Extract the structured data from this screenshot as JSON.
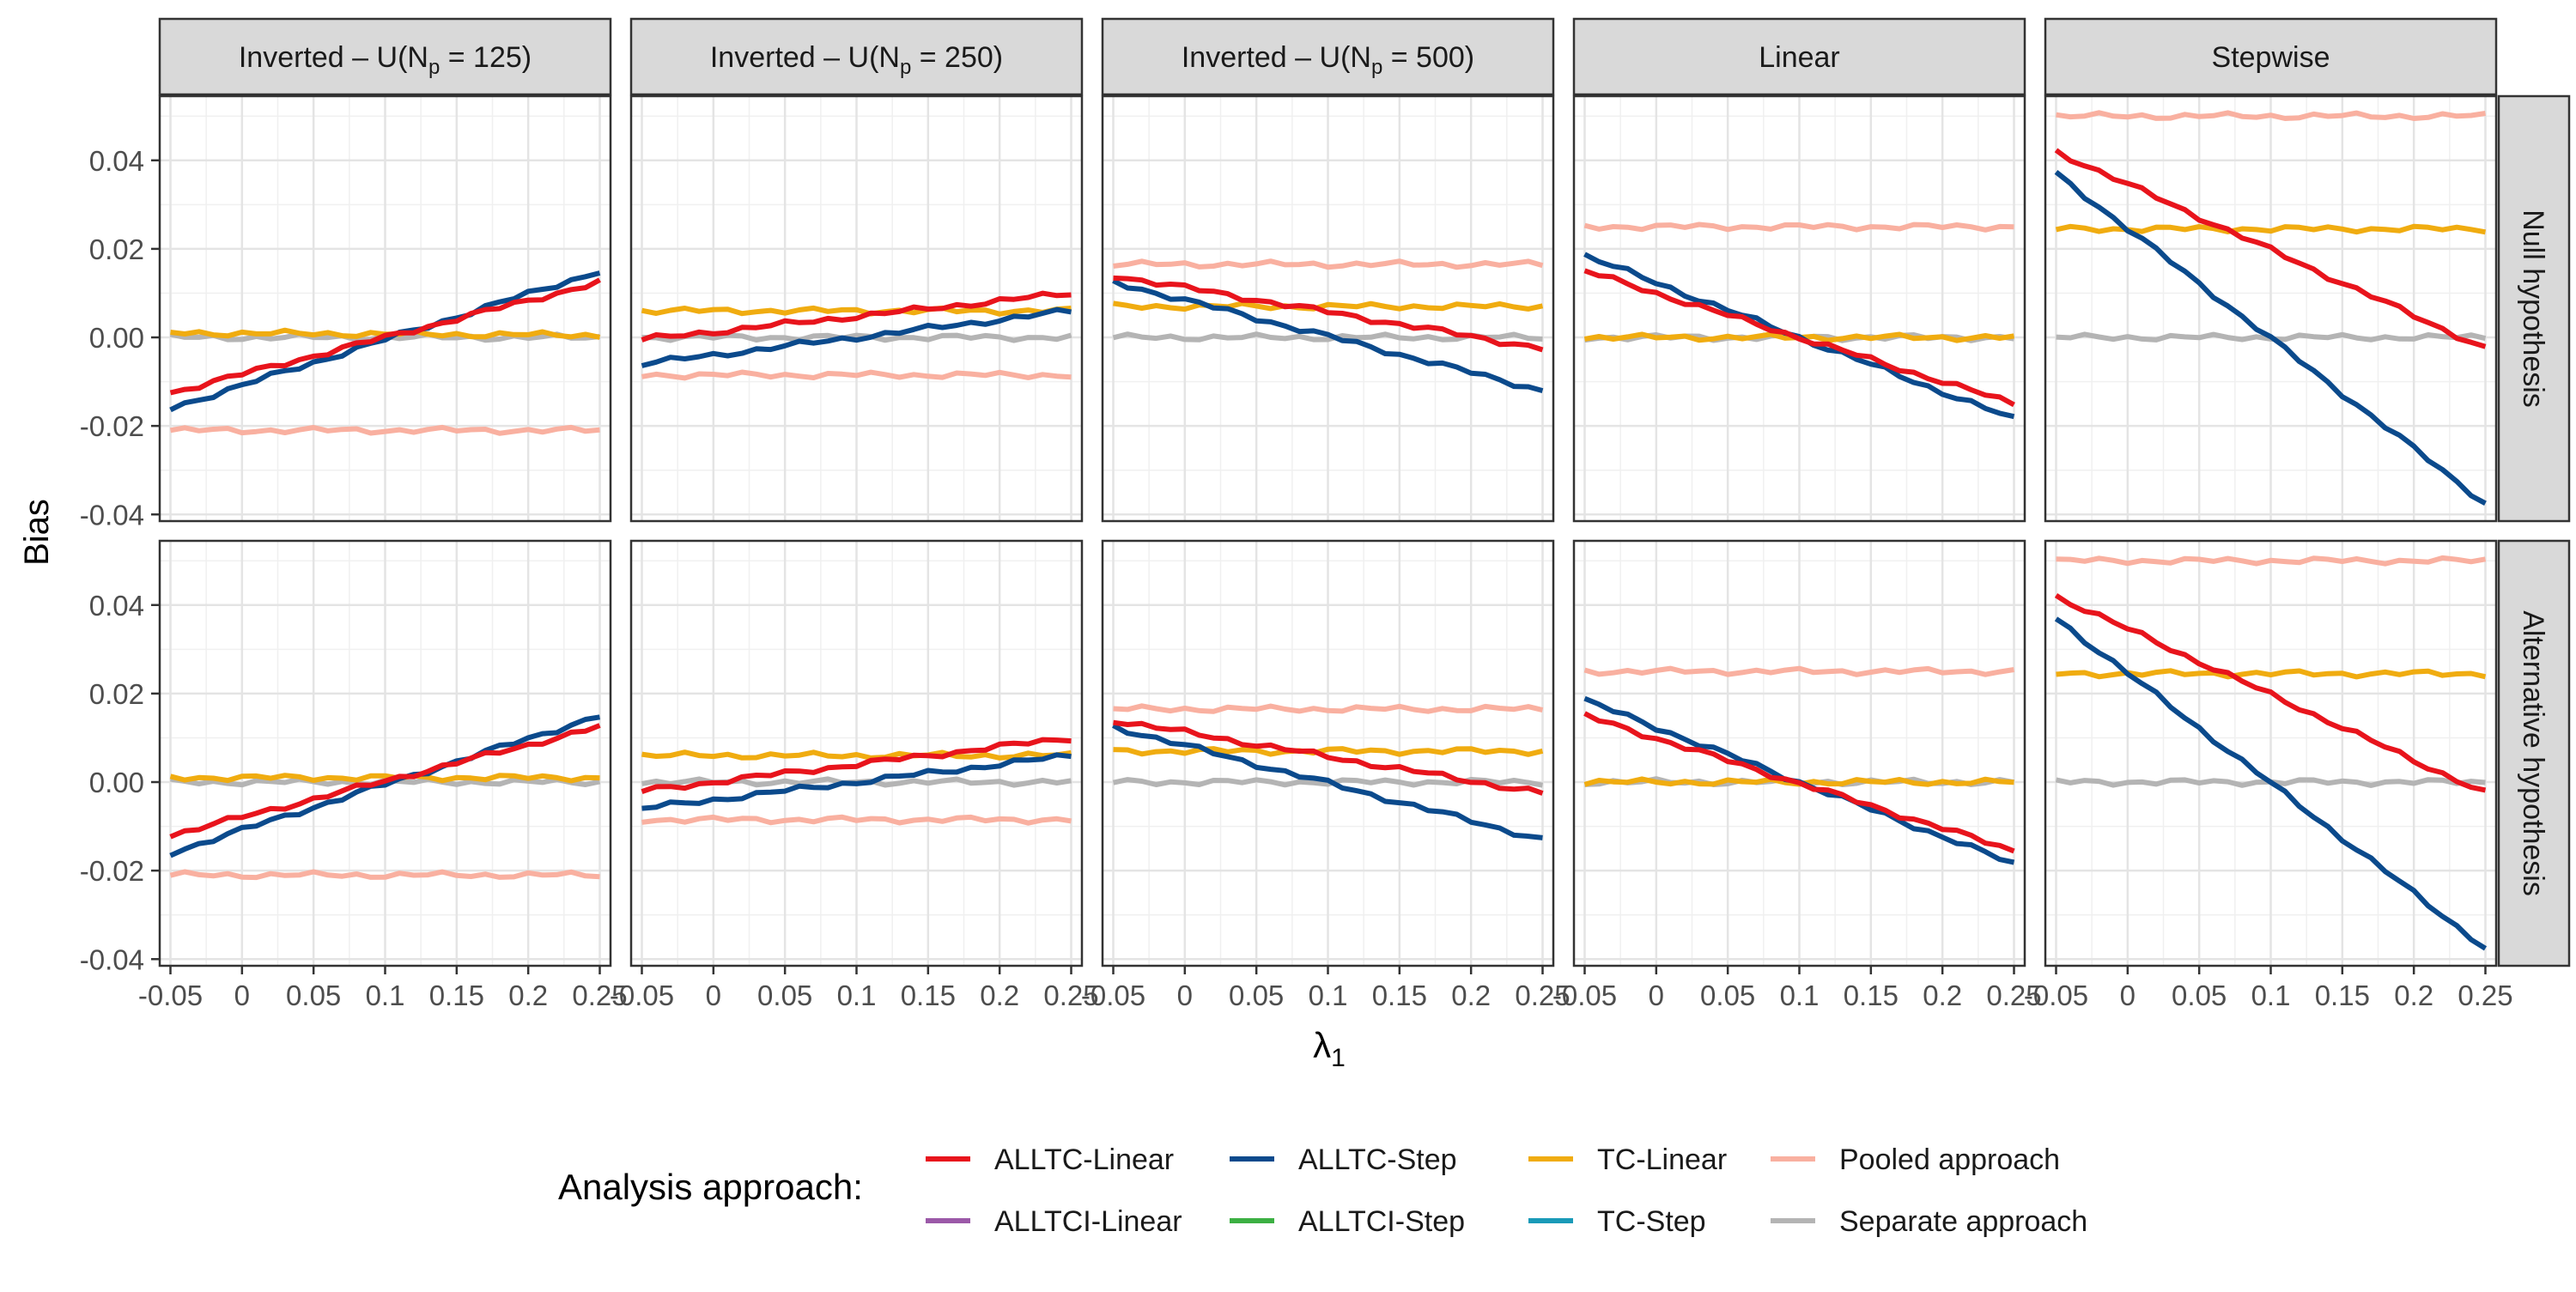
{
  "chart_data": {
    "type": "line",
    "ylabel": "Bias",
    "xlabel_symbol": "λ",
    "xlabel_subscript": "1",
    "x_ticks": [
      "-0.05",
      "0",
      "0.05",
      "0.1",
      "0.15",
      "0.2",
      "0.25"
    ],
    "y_ticks": [
      "-0.04",
      "-0.02",
      "0.00",
      "0.02",
      "0.04"
    ],
    "xlim": [
      -0.0575,
      0.2575
    ],
    "ylim": [
      -0.0415,
      0.0545
    ],
    "grid": true,
    "legend_placement": "bottom",
    "columns": [
      {
        "prefix": "Inverted – U(N",
        "sub": "p",
        "suffix": " = 125)"
      },
      {
        "prefix": "Inverted – U(N",
        "sub": "p",
        "suffix": " = 250)"
      },
      {
        "prefix": "Inverted – U(N",
        "sub": "p",
        "suffix": " = 500)"
      },
      {
        "prefix": "Linear",
        "sub": "",
        "suffix": ""
      },
      {
        "prefix": "Stepwise",
        "sub": "",
        "suffix": ""
      }
    ],
    "rows": [
      "Null hypothesis",
      "Alternative hypothesis"
    ],
    "legend": {
      "title": "Analysis approach:",
      "items": [
        {
          "name": "ALLTC-Linear",
          "color": "#e8141c"
        },
        {
          "name": "ALLTCI-Linear",
          "color": "#9b59a8"
        },
        {
          "name": "ALLTC-Step",
          "color": "#0b4a8c"
        },
        {
          "name": "ALLTCI-Step",
          "color": "#3cb043"
        },
        {
          "name": "TC-Linear",
          "color": "#f0ac10"
        },
        {
          "name": "TC-Step",
          "color": "#1a9ab8"
        },
        {
          "name": "Pooled approach",
          "color": "#f9b0a0"
        },
        {
          "name": "Separate approach",
          "color": "#b4b4b4"
        }
      ]
    },
    "x": [
      -0.05,
      0.25
    ],
    "series_order": [
      "Pooled approach",
      "Separate approach",
      "TC-Linear",
      "ALLTC-Step",
      "ALLTC-Linear"
    ],
    "panels": [
      [
        {
          "ALLTC-Linear": [
            -0.0125,
            0.0125
          ],
          "ALLTC-Step": [
            -0.016,
            0.015
          ],
          "TC-Linear": [
            0.001,
            0.0005
          ],
          "Pooled approach": [
            -0.021,
            -0.021
          ],
          "Separate approach": [
            0.0,
            0.0
          ]
        },
        {
          "ALLTC-Linear": [
            -0.012,
            0.0125
          ],
          "ALLTC-Step": [
            -0.016,
            0.015
          ],
          "TC-Linear": [
            0.001,
            0.001
          ],
          "Pooled approach": [
            -0.021,
            -0.021
          ],
          "Separate approach": [
            0.0,
            0.0
          ]
        }
      ],
      [
        {
          "ALLTC-Linear": [
            -0.0005,
            0.01
          ],
          "ALLTC-Step": [
            -0.006,
            0.006
          ],
          "TC-Linear": [
            0.006,
            0.006
          ],
          "Pooled approach": [
            -0.0085,
            -0.0085
          ],
          "Separate approach": [
            0.0,
            0.0
          ]
        },
        {
          "ALLTC-Linear": [
            -0.002,
            0.01
          ],
          "ALLTC-Step": [
            -0.006,
            0.006
          ],
          "TC-Linear": [
            0.006,
            0.006
          ],
          "Pooled approach": [
            -0.0085,
            -0.0085
          ],
          "Separate approach": [
            0.0,
            0.0
          ]
        }
      ],
      [
        {
          "ALLTC-Linear": [
            0.014,
            -0.0025
          ],
          "ALLTC-Step": [
            0.0125,
            -0.012
          ],
          "TC-Linear": [
            0.007,
            0.007
          ],
          "Pooled approach": [
            0.0165,
            0.0165
          ],
          "Separate approach": [
            0.0,
            0.0
          ]
        },
        {
          "ALLTC-Linear": [
            0.014,
            -0.0025
          ],
          "ALLTC-Step": [
            0.0125,
            -0.013
          ],
          "TC-Linear": [
            0.007,
            0.007
          ],
          "Pooled approach": [
            0.0165,
            0.0165
          ],
          "Separate approach": [
            0.0,
            0.0
          ]
        }
      ],
      [
        {
          "ALLTC-Linear": [
            0.015,
            -0.015
          ],
          "ALLTC-Step": [
            0.0185,
            -0.0185
          ],
          "TC-Linear": [
            0.0,
            0.0
          ],
          "Pooled approach": [
            0.025,
            0.025
          ],
          "Separate approach": [
            0.0,
            0.0
          ]
        },
        {
          "ALLTC-Linear": [
            0.015,
            -0.0155
          ],
          "ALLTC-Step": [
            0.0185,
            -0.0185
          ],
          "TC-Linear": [
            0.0,
            0.0
          ],
          "Pooled approach": [
            0.025,
            0.025
          ],
          "Separate approach": [
            0.0,
            0.0
          ]
        }
      ],
      [
        {
          "ALLTC-Linear": [
            0.042,
            -0.0025
          ],
          "ALLTC-Step": [
            0.037,
            -0.0375
          ],
          "TC-Linear": [
            0.0245,
            0.0245
          ],
          "Pooled approach": [
            0.05,
            0.05
          ],
          "Separate approach": [
            0.0,
            0.0
          ]
        },
        {
          "ALLTC-Linear": [
            0.042,
            -0.0025
          ],
          "ALLTC-Step": [
            0.037,
            -0.0375
          ],
          "TC-Linear": [
            0.0245,
            0.0245
          ],
          "Pooled approach": [
            0.05,
            0.05
          ],
          "Separate approach": [
            0.0,
            0.0
          ]
        }
      ]
    ]
  }
}
